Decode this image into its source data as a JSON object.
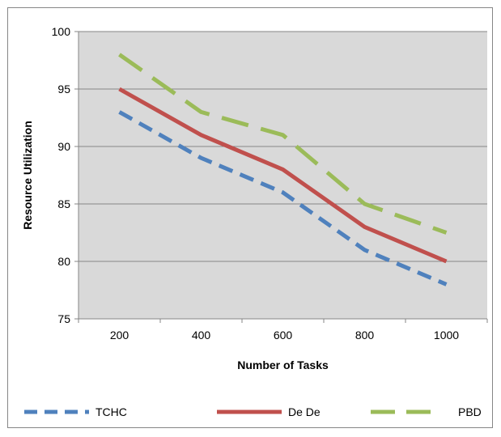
{
  "chart_data": {
    "type": "line",
    "categories": [
      "200",
      "400",
      "600",
      "800",
      "1000"
    ],
    "xlabel": "Number of Tasks",
    "ylabel": "Resource Utilization",
    "ylim": [
      75,
      100
    ],
    "yticks": [
      75,
      80,
      85,
      90,
      95,
      100
    ],
    "grid": "horizontal",
    "legend_position": "bottom",
    "series": [
      {
        "name": "TCHC",
        "values": [
          93,
          89,
          86,
          81,
          78
        ],
        "color": "#4f81bd",
        "dash": "dashed"
      },
      {
        "name": "De De",
        "values": [
          95,
          91,
          88,
          83,
          80
        ],
        "color": "#c0504d",
        "dash": "solid"
      },
      {
        "name": "PBD",
        "values": [
          98,
          93,
          91,
          85,
          82.5
        ],
        "color": "#9bbb59",
        "dash": "long-dashed"
      }
    ],
    "plot_background": "#d9d9d9"
  }
}
